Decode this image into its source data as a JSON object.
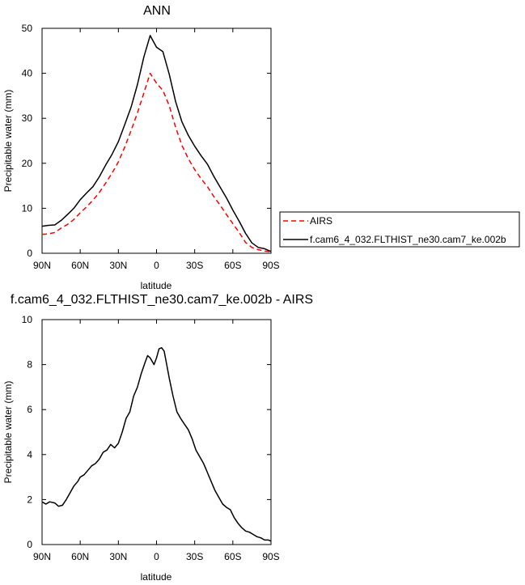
{
  "chart_data": [
    {
      "type": "line",
      "title": "ANN",
      "xlabel": "latitude",
      "ylabel": "Precipitable water (mm)",
      "xlim": [
        90,
        -90
      ],
      "ylim": [
        0,
        50
      ],
      "x_tick_values": [
        90,
        60,
        30,
        0,
        -30,
        -60,
        -90
      ],
      "x_tick_labels": [
        "90N",
        "60N",
        "30N",
        "0",
        "30S",
        "60S",
        "90S"
      ],
      "y_ticks": [
        0,
        10,
        20,
        30,
        40,
        50
      ],
      "grid": false,
      "legend": {
        "position": "right-outside"
      },
      "series": [
        {
          "name": "AIRS",
          "color": "#ff0000",
          "style": "dashed",
          "x": [
            90,
            85,
            80,
            75,
            70,
            65,
            60,
            55,
            50,
            45,
            40,
            35,
            30,
            25,
            20,
            15,
            10,
            5,
            0,
            -5,
            -10,
            -15,
            -20,
            -25,
            -30,
            -35,
            -40,
            -45,
            -50,
            -55,
            -60,
            -65,
            -70,
            -75,
            -80,
            -85,
            -90
          ],
          "values": [
            4.2,
            4.3,
            4.6,
            5.6,
            6.4,
            7.5,
            9.0,
            10.3,
            11.8,
            13.5,
            15.6,
            17.8,
            20.3,
            23.6,
            27.3,
            31.2,
            35.6,
            40.0,
            37.8,
            36.2,
            32.8,
            28.0,
            24.0,
            21.0,
            18.6,
            16.6,
            14.8,
            12.6,
            10.7,
            8.6,
            6.6,
            4.6,
            2.4,
            1.3,
            0.8,
            0.5,
            0.3
          ]
        },
        {
          "name": "f.cam6_4_032.FLTHIST_ne30.cam7_ke.002b",
          "color": "#000000",
          "style": "solid",
          "x": [
            90,
            85,
            80,
            75,
            70,
            65,
            60,
            55,
            50,
            45,
            40,
            35,
            30,
            25,
            20,
            15,
            10,
            5,
            0,
            -5,
            -10,
            -15,
            -20,
            -25,
            -30,
            -35,
            -40,
            -45,
            -50,
            -55,
            -60,
            -65,
            -70,
            -75,
            -80,
            -85,
            -90
          ],
          "values": [
            6.0,
            6.2,
            6.3,
            7.3,
            8.6,
            10.0,
            11.9,
            13.4,
            14.8,
            17.0,
            19.6,
            22.0,
            24.8,
            28.6,
            32.5,
            37.5,
            43.6,
            48.4,
            45.8,
            44.8,
            39.8,
            33.7,
            29.2,
            26.2,
            23.8,
            21.7,
            19.8,
            17.1,
            14.7,
            12.3,
            9.6,
            7.1,
            4.4,
            2.3,
            1.3,
            1.0,
            0.4
          ]
        }
      ]
    },
    {
      "type": "line",
      "title": "f.cam6_4_032.FLTHIST_ne30.cam7_ke.002b - AIRS",
      "xlabel": "latitude",
      "ylabel": "Precipitable water (mm)",
      "xlim": [
        90,
        -90
      ],
      "ylim": [
        0,
        10
      ],
      "x_tick_values": [
        90,
        60,
        30,
        0,
        -30,
        -60,
        -90
      ],
      "x_tick_labels": [
        "90N",
        "60N",
        "30N",
        "0",
        "30S",
        "60S",
        "90S"
      ],
      "y_ticks": [
        0,
        2,
        4,
        6,
        8,
        10
      ],
      "grid": false,
      "series": [
        {
          "color": "#000000",
          "style": "solid",
          "x": [
            90,
            87,
            84,
            80,
            77,
            74,
            71,
            68,
            65,
            62,
            60,
            57,
            54,
            51,
            48,
            45,
            42,
            39,
            36,
            33,
            30,
            27,
            24,
            21,
            18,
            15,
            12,
            9,
            7,
            5,
            2,
            0,
            -2,
            -4,
            -6,
            -8,
            -10,
            -13,
            -16,
            -19,
            -22,
            -25,
            -28,
            -31,
            -34,
            -37,
            -40,
            -43,
            -46,
            -49,
            -52,
            -55,
            -58,
            -61,
            -64,
            -67,
            -70,
            -73,
            -76,
            -79,
            -82,
            -85,
            -88,
            -90
          ],
          "values": [
            1.9,
            1.8,
            1.9,
            1.85,
            1.7,
            1.75,
            2.0,
            2.3,
            2.6,
            2.8,
            3.0,
            3.1,
            3.3,
            3.5,
            3.6,
            3.8,
            4.1,
            4.2,
            4.45,
            4.3,
            4.5,
            5.0,
            5.6,
            5.9,
            6.6,
            7.0,
            7.6,
            8.1,
            8.4,
            8.3,
            8.0,
            8.3,
            8.7,
            8.75,
            8.6,
            8.0,
            7.4,
            6.6,
            5.9,
            5.6,
            5.35,
            5.1,
            4.7,
            4.2,
            3.9,
            3.6,
            3.2,
            2.8,
            2.4,
            2.1,
            1.8,
            1.65,
            1.55,
            1.2,
            0.95,
            0.75,
            0.6,
            0.55,
            0.45,
            0.35,
            0.3,
            0.2,
            0.2,
            0.15
          ]
        }
      ]
    }
  ]
}
